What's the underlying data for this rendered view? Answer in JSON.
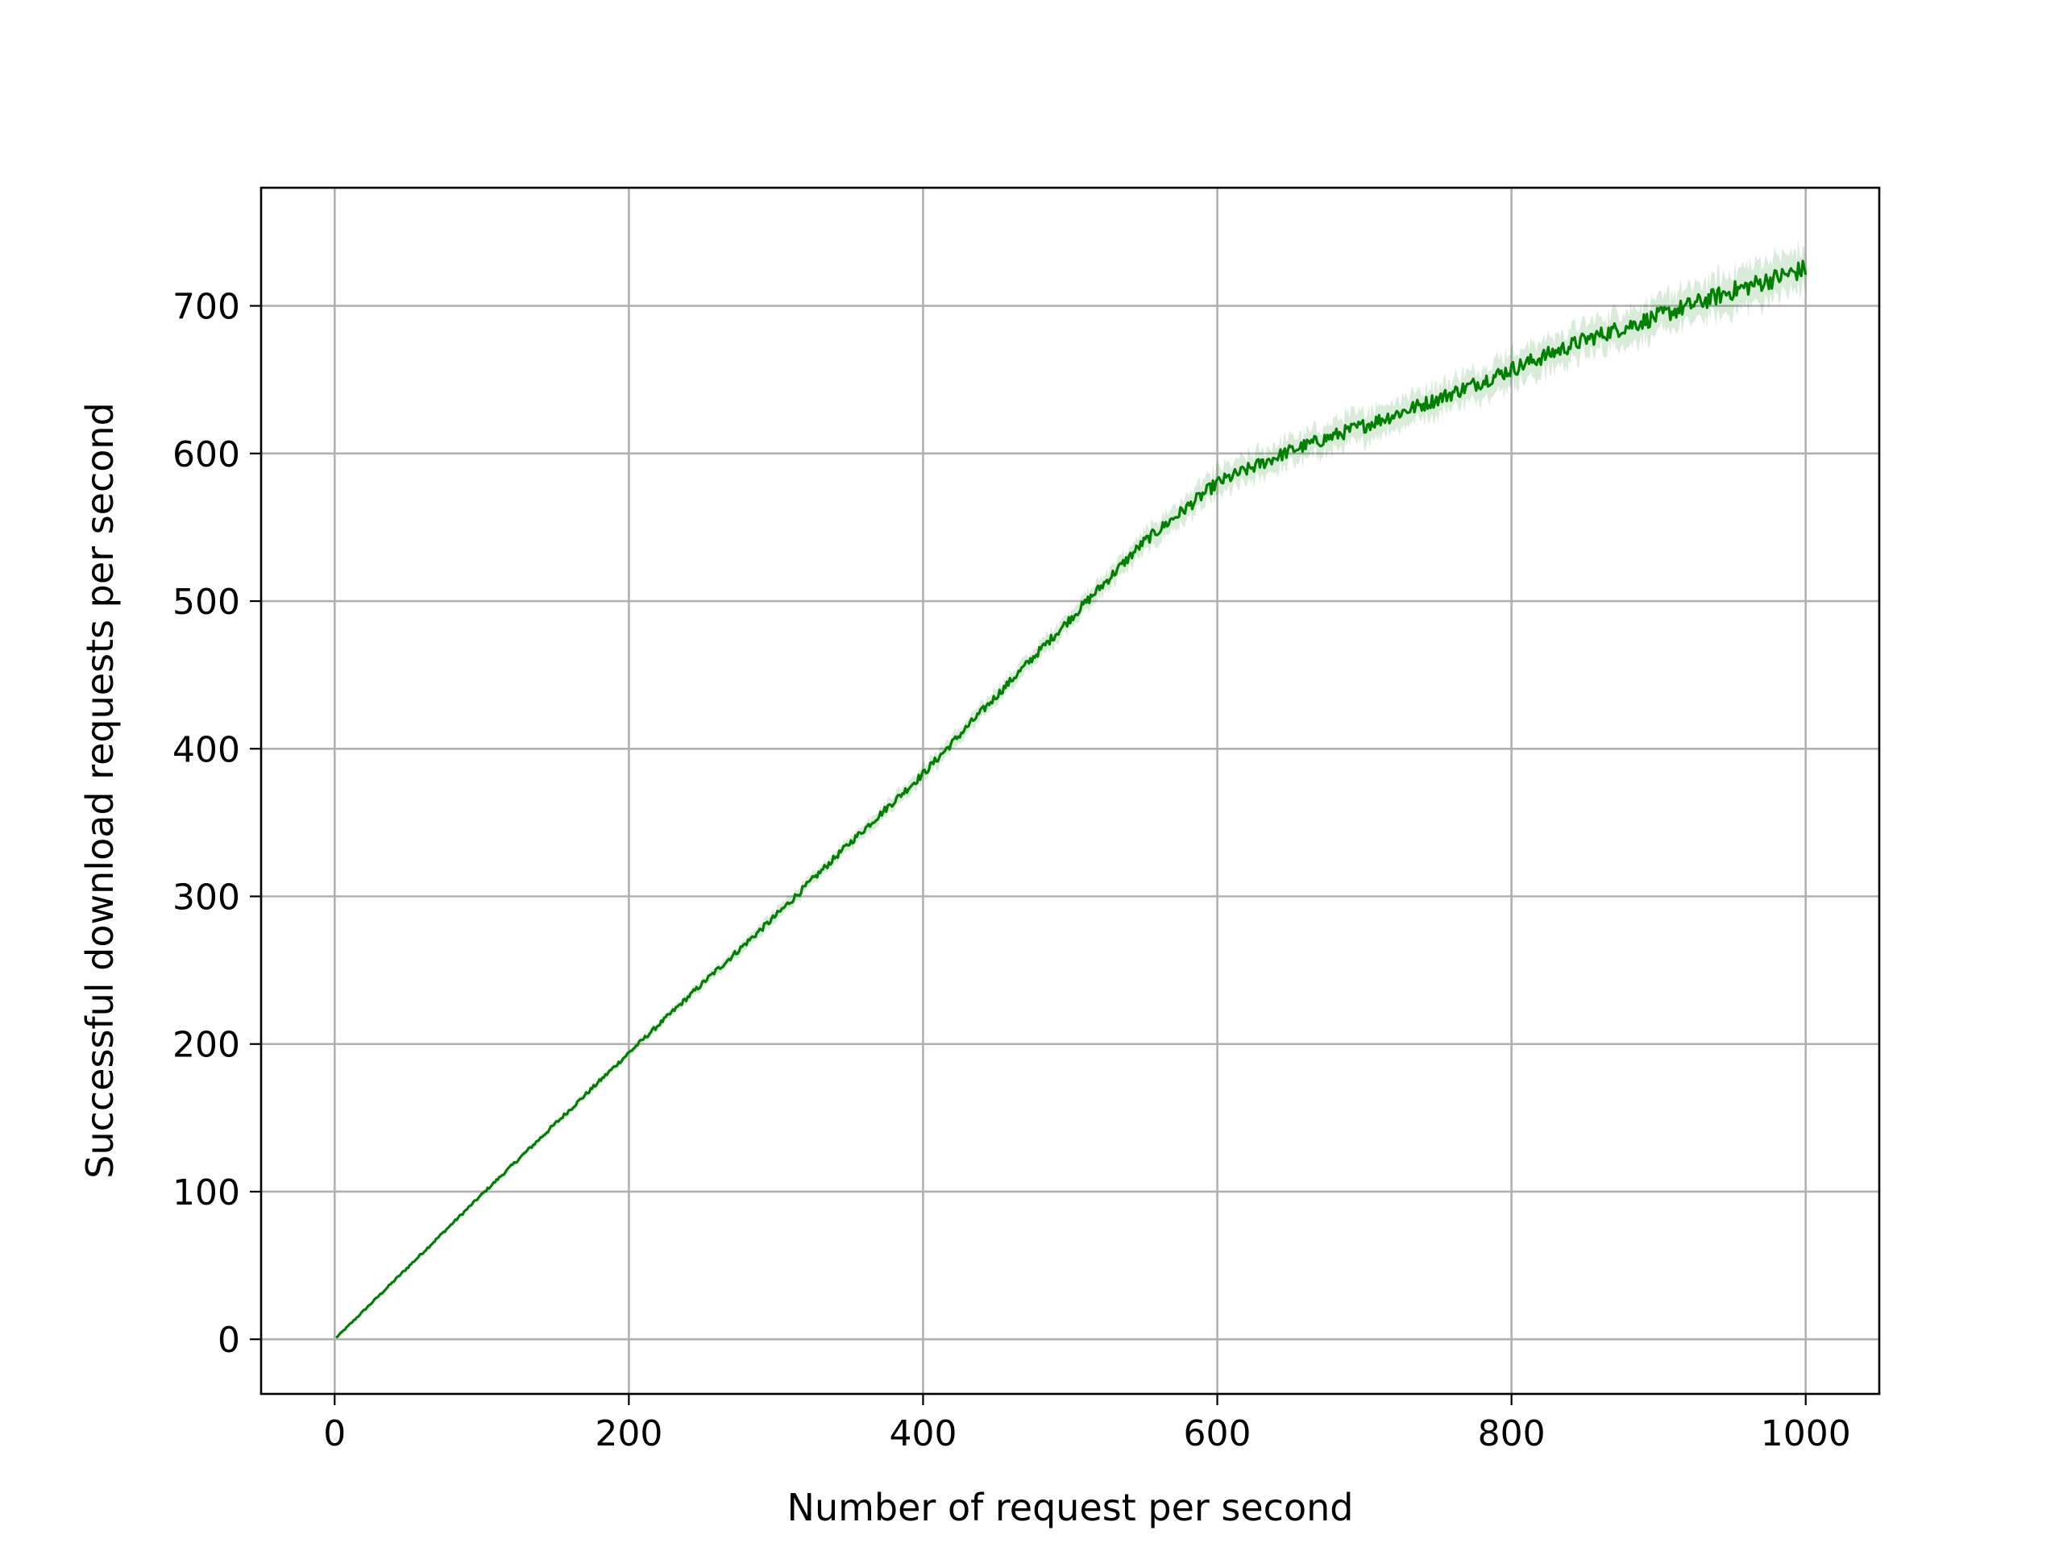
{
  "chart_data": {
    "type": "line",
    "title": "",
    "xlabel": "Number of request per second",
    "ylabel": "Successful download requests per second",
    "xlim": [
      -50,
      1050
    ],
    "ylim": [
      -37,
      780
    ],
    "xticks": [
      0,
      200,
      400,
      600,
      800,
      1000
    ],
    "yticks": [
      0,
      100,
      200,
      300,
      400,
      500,
      600,
      700
    ],
    "grid": true,
    "legend": "none",
    "series": [
      {
        "color": "#008000",
        "band_color": "#008000",
        "x": [
          0,
          50,
          100,
          150,
          200,
          250,
          300,
          350,
          400,
          450,
          500,
          550,
          600,
          650,
          700,
          750,
          800,
          850,
          900,
          950,
          1000
        ],
        "y": [
          0,
          49,
          98,
          146,
          194,
          241,
          287,
          336,
          383,
          436,
          488,
          540,
          580,
          602,
          619,
          637,
          657,
          677,
          693,
          710,
          725
        ],
        "band_halfwidth": [
          0,
          1,
          1,
          2,
          2,
          3,
          4,
          4,
          5,
          5,
          6,
          7,
          9,
          9,
          10,
          10,
          11,
          11,
          12,
          13,
          14
        ]
      }
    ]
  }
}
